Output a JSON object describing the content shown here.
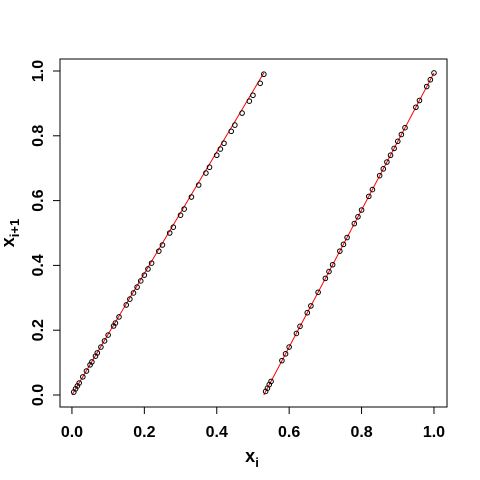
{
  "chart_data": {
    "type": "scatter",
    "x_label": {
      "text": "x",
      "subscript": "i"
    },
    "y_label": {
      "text": "x",
      "subscript": "i+1"
    },
    "xlim": [
      -0.033,
      1.036
    ],
    "ylim": [
      -0.037,
      1.037
    ],
    "xticks": [
      {
        "value": 0,
        "label": "0.0"
      },
      0.2,
      0.4,
      0.6,
      0.8,
      {
        "value": 1,
        "label": "1.0"
      }
    ],
    "yticks": [
      {
        "value": 0,
        "label": "0.0"
      },
      0.2,
      0.4,
      0.6,
      0.8,
      {
        "value": 1,
        "label": "1.0"
      }
    ],
    "series": [
      {
        "color": "#000000",
        "x": [
          0.005,
          0.01,
          0.015,
          0.02,
          0.03,
          0.04,
          0.05,
          0.055,
          0.065,
          0.07,
          0.08,
          0.09,
          0.1,
          0.115,
          0.12,
          0.13,
          0.15,
          0.16,
          0.17,
          0.18,
          0.19,
          0.2,
          0.21,
          0.22,
          0.24,
          0.25,
          0.27,
          0.28,
          0.3,
          0.31,
          0.33,
          0.35,
          0.37,
          0.38,
          0.4,
          0.41,
          0.42,
          0.44,
          0.45,
          0.47,
          0.49,
          0.5,
          0.52,
          0.53
        ],
        "values": [
          0.009,
          0.019,
          0.028,
          0.037,
          0.056,
          0.074,
          0.093,
          0.102,
          0.12,
          0.13,
          0.148,
          0.167,
          0.185,
          0.213,
          0.222,
          0.241,
          0.278,
          0.296,
          0.315,
          0.333,
          0.352,
          0.37,
          0.389,
          0.407,
          0.444,
          0.463,
          0.5,
          0.518,
          0.555,
          0.574,
          0.611,
          0.648,
          0.685,
          0.703,
          0.74,
          0.759,
          0.777,
          0.814,
          0.833,
          0.87,
          0.907,
          0.925,
          0.962,
          0.99
        ]
      },
      {
        "color": "#000000",
        "x": [
          0.535,
          0.54,
          0.545,
          0.55,
          0.58,
          0.59,
          0.6,
          0.62,
          0.63,
          0.65,
          0.66,
          0.68,
          0.7,
          0.71,
          0.72,
          0.74,
          0.75,
          0.76,
          0.78,
          0.79,
          0.8,
          0.82,
          0.83,
          0.85,
          0.86,
          0.87,
          0.88,
          0.89,
          0.9,
          0.91,
          0.92,
          0.95,
          0.96,
          0.98,
          0.99,
          1.0
        ],
        "values": [
          0.011,
          0.021,
          0.032,
          0.042,
          0.106,
          0.127,
          0.148,
          0.19,
          0.212,
          0.254,
          0.275,
          0.317,
          0.36,
          0.381,
          0.402,
          0.444,
          0.465,
          0.486,
          0.529,
          0.55,
          0.571,
          0.613,
          0.634,
          0.677,
          0.698,
          0.719,
          0.74,
          0.761,
          0.783,
          0.804,
          0.825,
          0.888,
          0.909,
          0.952,
          0.973,
          0.994
        ]
      }
    ],
    "lines": [
      {
        "color": "#ff0000",
        "x": [
          0,
          0.53
        ],
        "values": [
          0,
          0.994
        ]
      },
      {
        "color": "#ff0000",
        "x": [
          0.53,
          1.0
        ],
        "values": [
          0,
          0.994
        ]
      }
    ]
  }
}
